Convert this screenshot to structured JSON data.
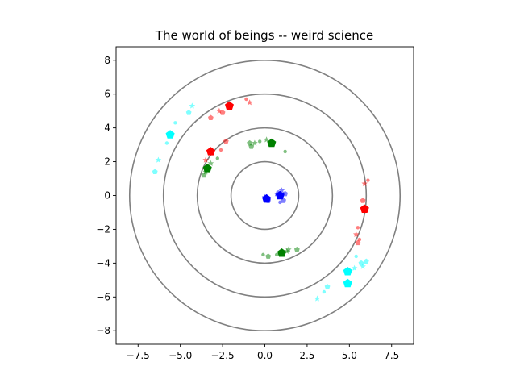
{
  "chart_data": {
    "type": "scatter",
    "title": "The world of beings -- weird science",
    "xlabel": "",
    "ylabel": "",
    "xlim": [
      -8.8,
      8.8
    ],
    "ylim": [
      -8.8,
      8.8
    ],
    "x_ticks": [
      -7.5,
      -5.0,
      -2.5,
      0.0,
      2.5,
      5.0,
      7.5
    ],
    "x_tick_labels": [
      "−7.5",
      "−5.0",
      "−2.5",
      "0.0",
      "2.5",
      "5.0",
      "7.5"
    ],
    "y_ticks": [
      -8,
      -6,
      -4,
      -2,
      0,
      2,
      4,
      6,
      8
    ],
    "y_tick_labels": [
      "−8",
      "−6",
      "−4",
      "−2",
      "0",
      "2",
      "4",
      "6",
      "8"
    ],
    "grid": false,
    "rings": {
      "color": "#808080",
      "radii": [
        2,
        4,
        6,
        8
      ]
    },
    "groups": [
      {
        "color": "#0000ff",
        "leaders": [
          [
            0.1,
            -0.2
          ],
          [
            0.9,
            0.0
          ]
        ],
        "followers": [
          [
            0.0,
            -0.1
          ],
          [
            0.2,
            -0.3
          ],
          [
            0.8,
            0.2
          ],
          [
            1.0,
            0.3
          ],
          [
            1.1,
            -0.3
          ],
          [
            0.9,
            -0.4
          ],
          [
            0.7,
            0.1
          ],
          [
            1.2,
            0.1
          ]
        ]
      },
      {
        "color": "#008000",
        "leaders": [
          [
            0.4,
            3.1
          ],
          [
            -3.4,
            1.6
          ],
          [
            1.0,
            -3.4
          ]
        ],
        "followers": [
          [
            -0.6,
            3.1
          ],
          [
            -0.8,
            2.9
          ],
          [
            -0.3,
            3.2
          ],
          [
            0.1,
            3.3
          ],
          [
            -0.9,
            3.1
          ],
          [
            1.2,
            2.6
          ],
          [
            -3.5,
            1.4
          ],
          [
            -3.6,
            1.2
          ],
          [
            -2.8,
            2.2
          ],
          [
            -3.2,
            1.9
          ],
          [
            0.2,
            -3.6
          ],
          [
            0.7,
            -3.5
          ],
          [
            1.4,
            -3.2
          ],
          [
            1.9,
            -3.2
          ],
          [
            -0.1,
            -3.5
          ],
          [
            1.3,
            -3.3
          ]
        ]
      },
      {
        "color": "#ff0000",
        "leaders": [
          [
            -2.1,
            5.3
          ],
          [
            -3.2,
            2.6
          ],
          [
            5.9,
            -0.8
          ]
        ],
        "followers": [
          [
            -2.7,
            5.0
          ],
          [
            -2.5,
            4.9
          ],
          [
            -1.1,
            5.7
          ],
          [
            -0.9,
            5.5
          ],
          [
            -3.2,
            4.6
          ],
          [
            -2.6,
            2.7
          ],
          [
            -3.5,
            2.1
          ],
          [
            -2.3,
            3.2
          ],
          [
            6.1,
            0.9
          ],
          [
            5.9,
            0.7
          ],
          [
            5.8,
            -0.3
          ],
          [
            5.5,
            -1.9
          ],
          [
            5.4,
            -2.3
          ],
          [
            5.5,
            -2.8
          ],
          [
            5.6,
            -2.6
          ]
        ]
      },
      {
        "color": "#00ffff",
        "leaders": [
          [
            -5.6,
            3.6
          ],
          [
            4.9,
            -4.5
          ],
          [
            4.9,
            -5.2
          ]
        ],
        "followers": [
          [
            -4.3,
            5.3
          ],
          [
            -4.5,
            4.9
          ],
          [
            -5.3,
            4.3
          ],
          [
            -6.3,
            2.1
          ],
          [
            -6.5,
            1.4
          ],
          [
            -5.8,
            3.1
          ],
          [
            5.8,
            -4.2
          ],
          [
            6.0,
            -3.9
          ],
          [
            5.4,
            -3.6
          ],
          [
            5.3,
            -4.3
          ],
          [
            3.7,
            -5.4
          ],
          [
            3.5,
            -5.7
          ],
          [
            3.1,
            -6.1
          ],
          [
            5.7,
            -4.0
          ]
        ]
      }
    ]
  }
}
